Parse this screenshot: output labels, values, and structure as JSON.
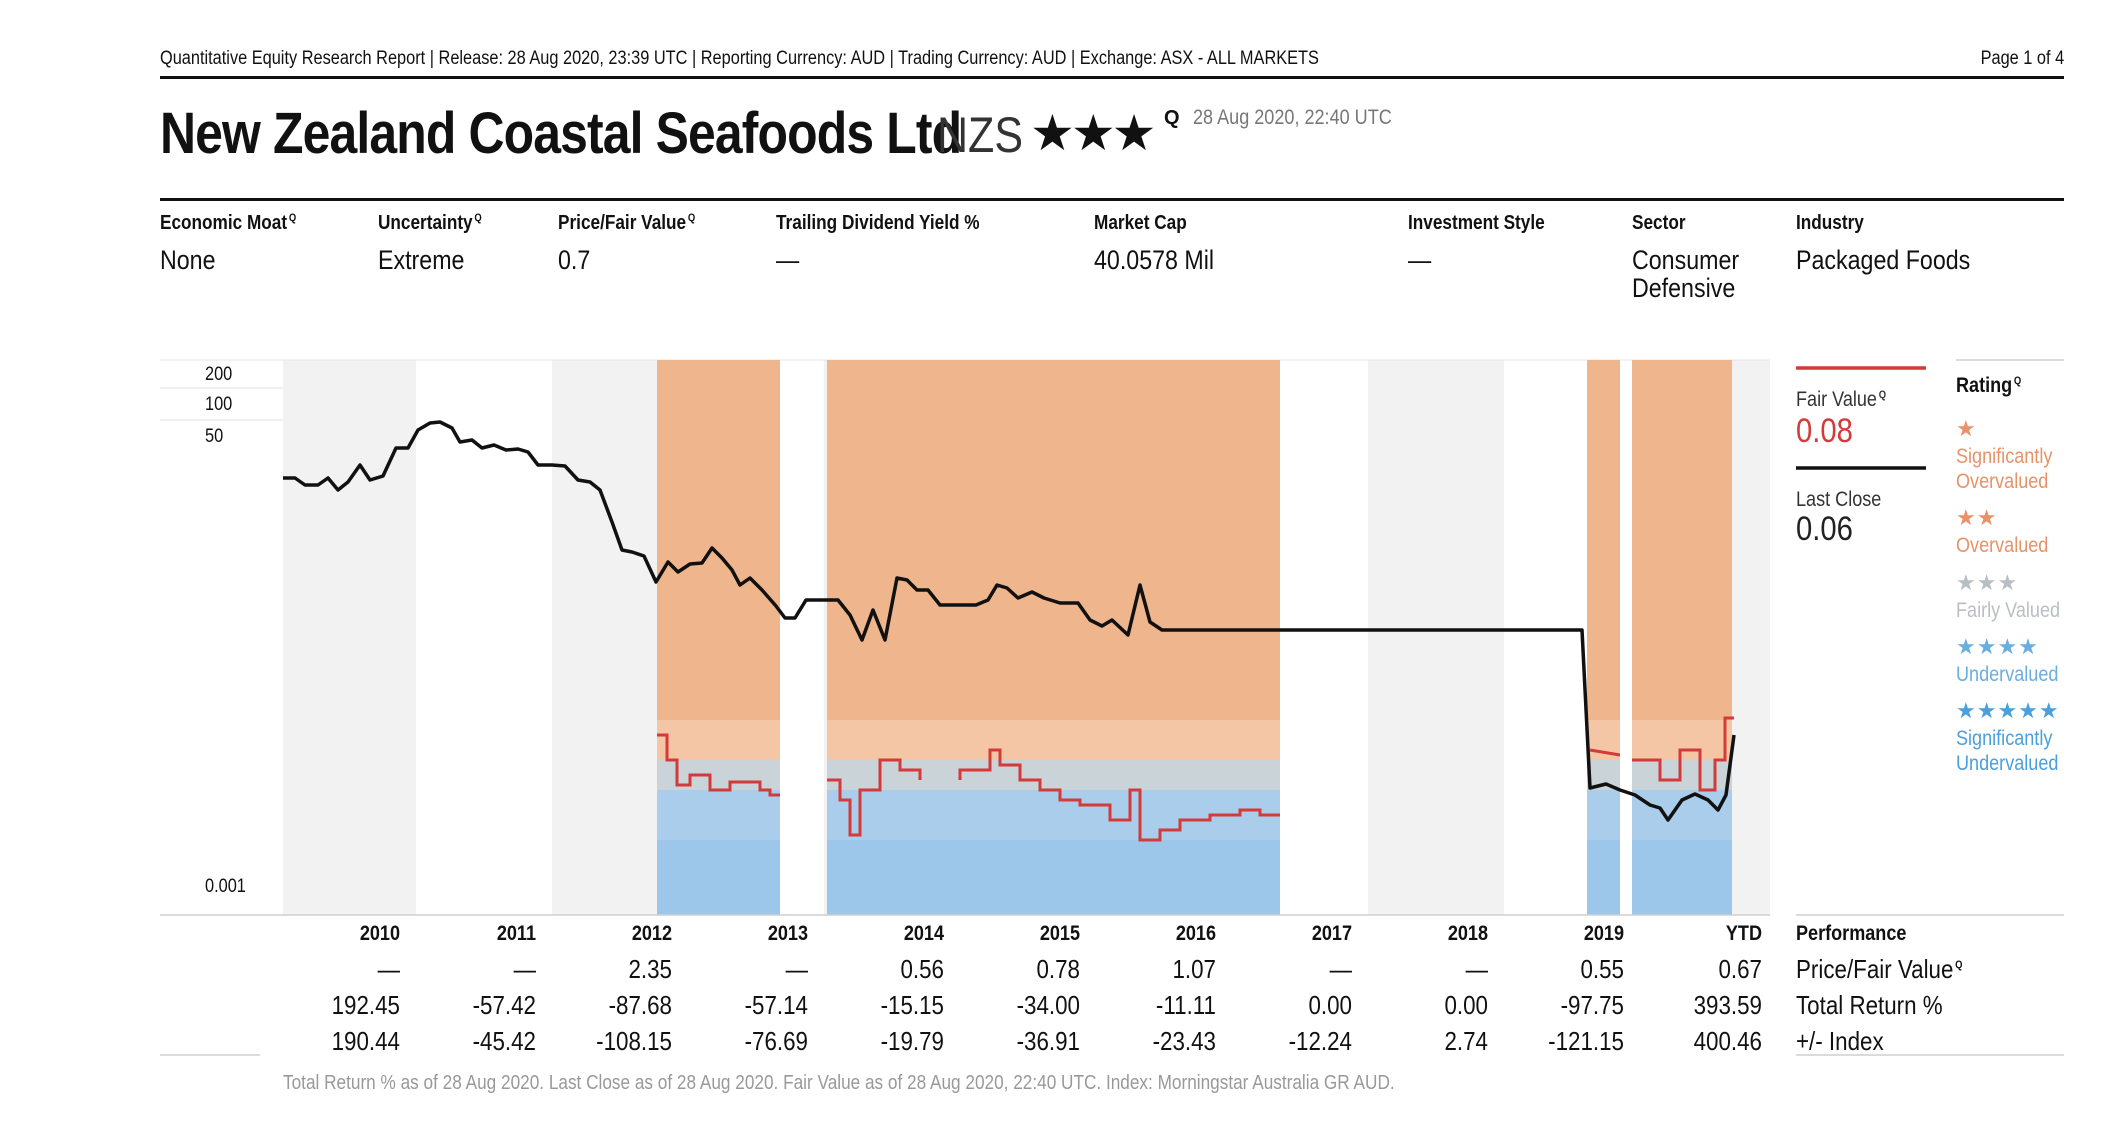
{
  "header": {
    "line": "Quantitative Equity Research Report | Release: 28 Aug 2020, 23:39 UTC | Reporting Currency: AUD | Trading Currency: AUD | Exchange: ASX - ALL MARKETS",
    "page": "Page 1 of 4"
  },
  "title": {
    "company": "New Zealand Coastal Seafoods Ltd",
    "ticker": "NZS",
    "stars": "★★★",
    "q": "Q",
    "date": "28 Aug 2020, 22:40 UTC"
  },
  "key_stats": [
    {
      "label": "Economic Moat",
      "q": "Q",
      "value": "None"
    },
    {
      "label": "Uncertainty",
      "q": "Q",
      "value": "Extreme"
    },
    {
      "label": "Price/Fair Value",
      "q": "Q",
      "value": "0.7"
    },
    {
      "label": "Trailing Dividend Yield %",
      "q": "",
      "value": "—"
    },
    {
      "label": "Market Cap",
      "q": "",
      "value": "40.0578 Mil"
    },
    {
      "label": "Investment Style",
      "q": "",
      "value": "—"
    },
    {
      "label": "Sector",
      "q": "",
      "value": "Consumer Defensive"
    },
    {
      "label": "Industry",
      "q": "",
      "value": "Packaged Foods"
    }
  ],
  "chart": {
    "y_ticks": [
      "200",
      "100",
      "50",
      "0.001"
    ],
    "y_scale": "log"
  },
  "side_panel": {
    "fair_value_label": "Fair Value",
    "fair_value_q": "Q",
    "fair_value": "0.08",
    "last_close_label": "Last Close",
    "last_close": "0.06",
    "fair_value_color": "#d33a3a",
    "last_close_color": "#111111"
  },
  "rating_legend": {
    "title": "Rating",
    "q": "Q",
    "items": [
      {
        "stars": "★",
        "label1": "Significantly",
        "label2": "Overvalued",
        "color": "#e8926a"
      },
      {
        "stars": "★★",
        "label1": "Overvalued",
        "label2": "",
        "color": "#e8926a"
      },
      {
        "stars": "★★★",
        "label1": "Fairly Valued",
        "label2": "",
        "color": "#b8bfc3"
      },
      {
        "stars": "★★★★",
        "label1": "Undervalued",
        "label2": "",
        "color": "#6aaee0"
      },
      {
        "stars": "★★★★★",
        "label1": "Significantly",
        "label2": "Undervalued",
        "color": "#4a9fdc"
      }
    ]
  },
  "performance": {
    "title": "Performance",
    "years": [
      "2010",
      "2011",
      "2012",
      "2013",
      "2014",
      "2015",
      "2016",
      "2017",
      "2018",
      "2019",
      "YTD"
    ],
    "rows": [
      {
        "label": "Price/Fair Value",
        "q": "Q",
        "values": [
          "—",
          "—",
          "2.35",
          "—",
          "0.56",
          "0.78",
          "1.07",
          "—",
          "—",
          "0.55",
          "0.67"
        ]
      },
      {
        "label": "Total Return %",
        "q": "",
        "values": [
          "192.45",
          "-57.42",
          "-87.68",
          "-57.14",
          "-15.15",
          "-34.00",
          "-11.11",
          "0.00",
          "0.00",
          "-97.75",
          "393.59"
        ]
      },
      {
        "label": "+/- Index",
        "q": "",
        "values": [
          "190.44",
          "-45.42",
          "-108.15",
          "-76.69",
          "-19.79",
          "-36.91",
          "-23.43",
          "-12.24",
          "2.74",
          "-121.15",
          "400.46"
        ]
      }
    ]
  },
  "footnote": "Total Return % as of 28 Aug 2020. Last Close as of 28 Aug 2020. Fair Value as of 28 Aug 2020, 22:40 UTC. Index: Morningstar Australia GR AUD."
}
